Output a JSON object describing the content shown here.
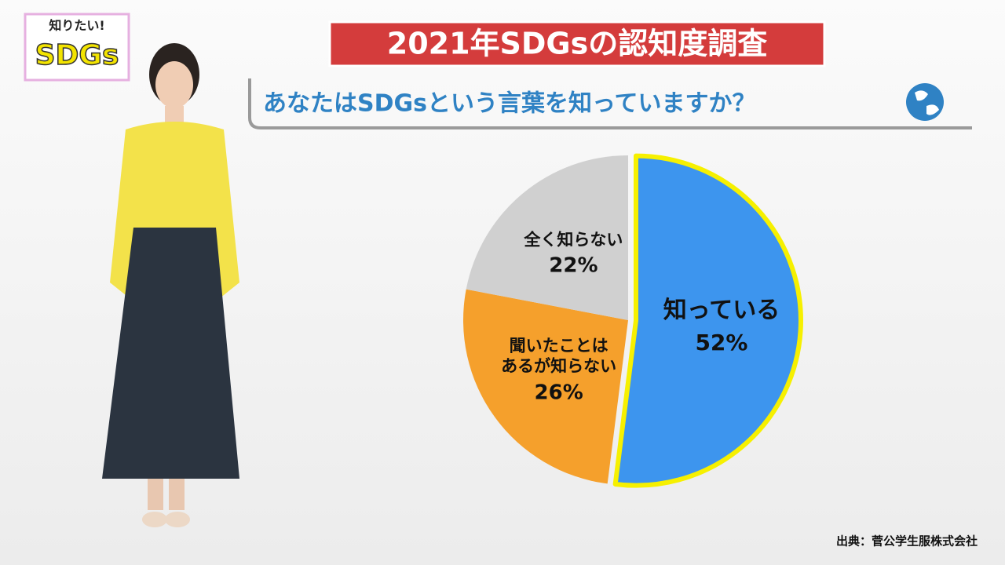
{
  "logo": {
    "line1": "知りたい!",
    "line2": "SDGs"
  },
  "chart_data": {
    "type": "pie",
    "title": "2021年SDGsの認知度調査",
    "subtitle": "あなたはSDGsという言葉を知っていますか？",
    "categories": [
      "知っている",
      "聞いたことは\nあるが知らない",
      "全く知らない"
    ],
    "values": [
      52,
      26,
      22
    ],
    "value_labels": [
      "52%",
      "26%",
      "22%"
    ],
    "colors": [
      "#3d95ee",
      "#f5a02c",
      "#d0d0d0"
    ],
    "source": "出典：菅公学生服株式会社"
  }
}
